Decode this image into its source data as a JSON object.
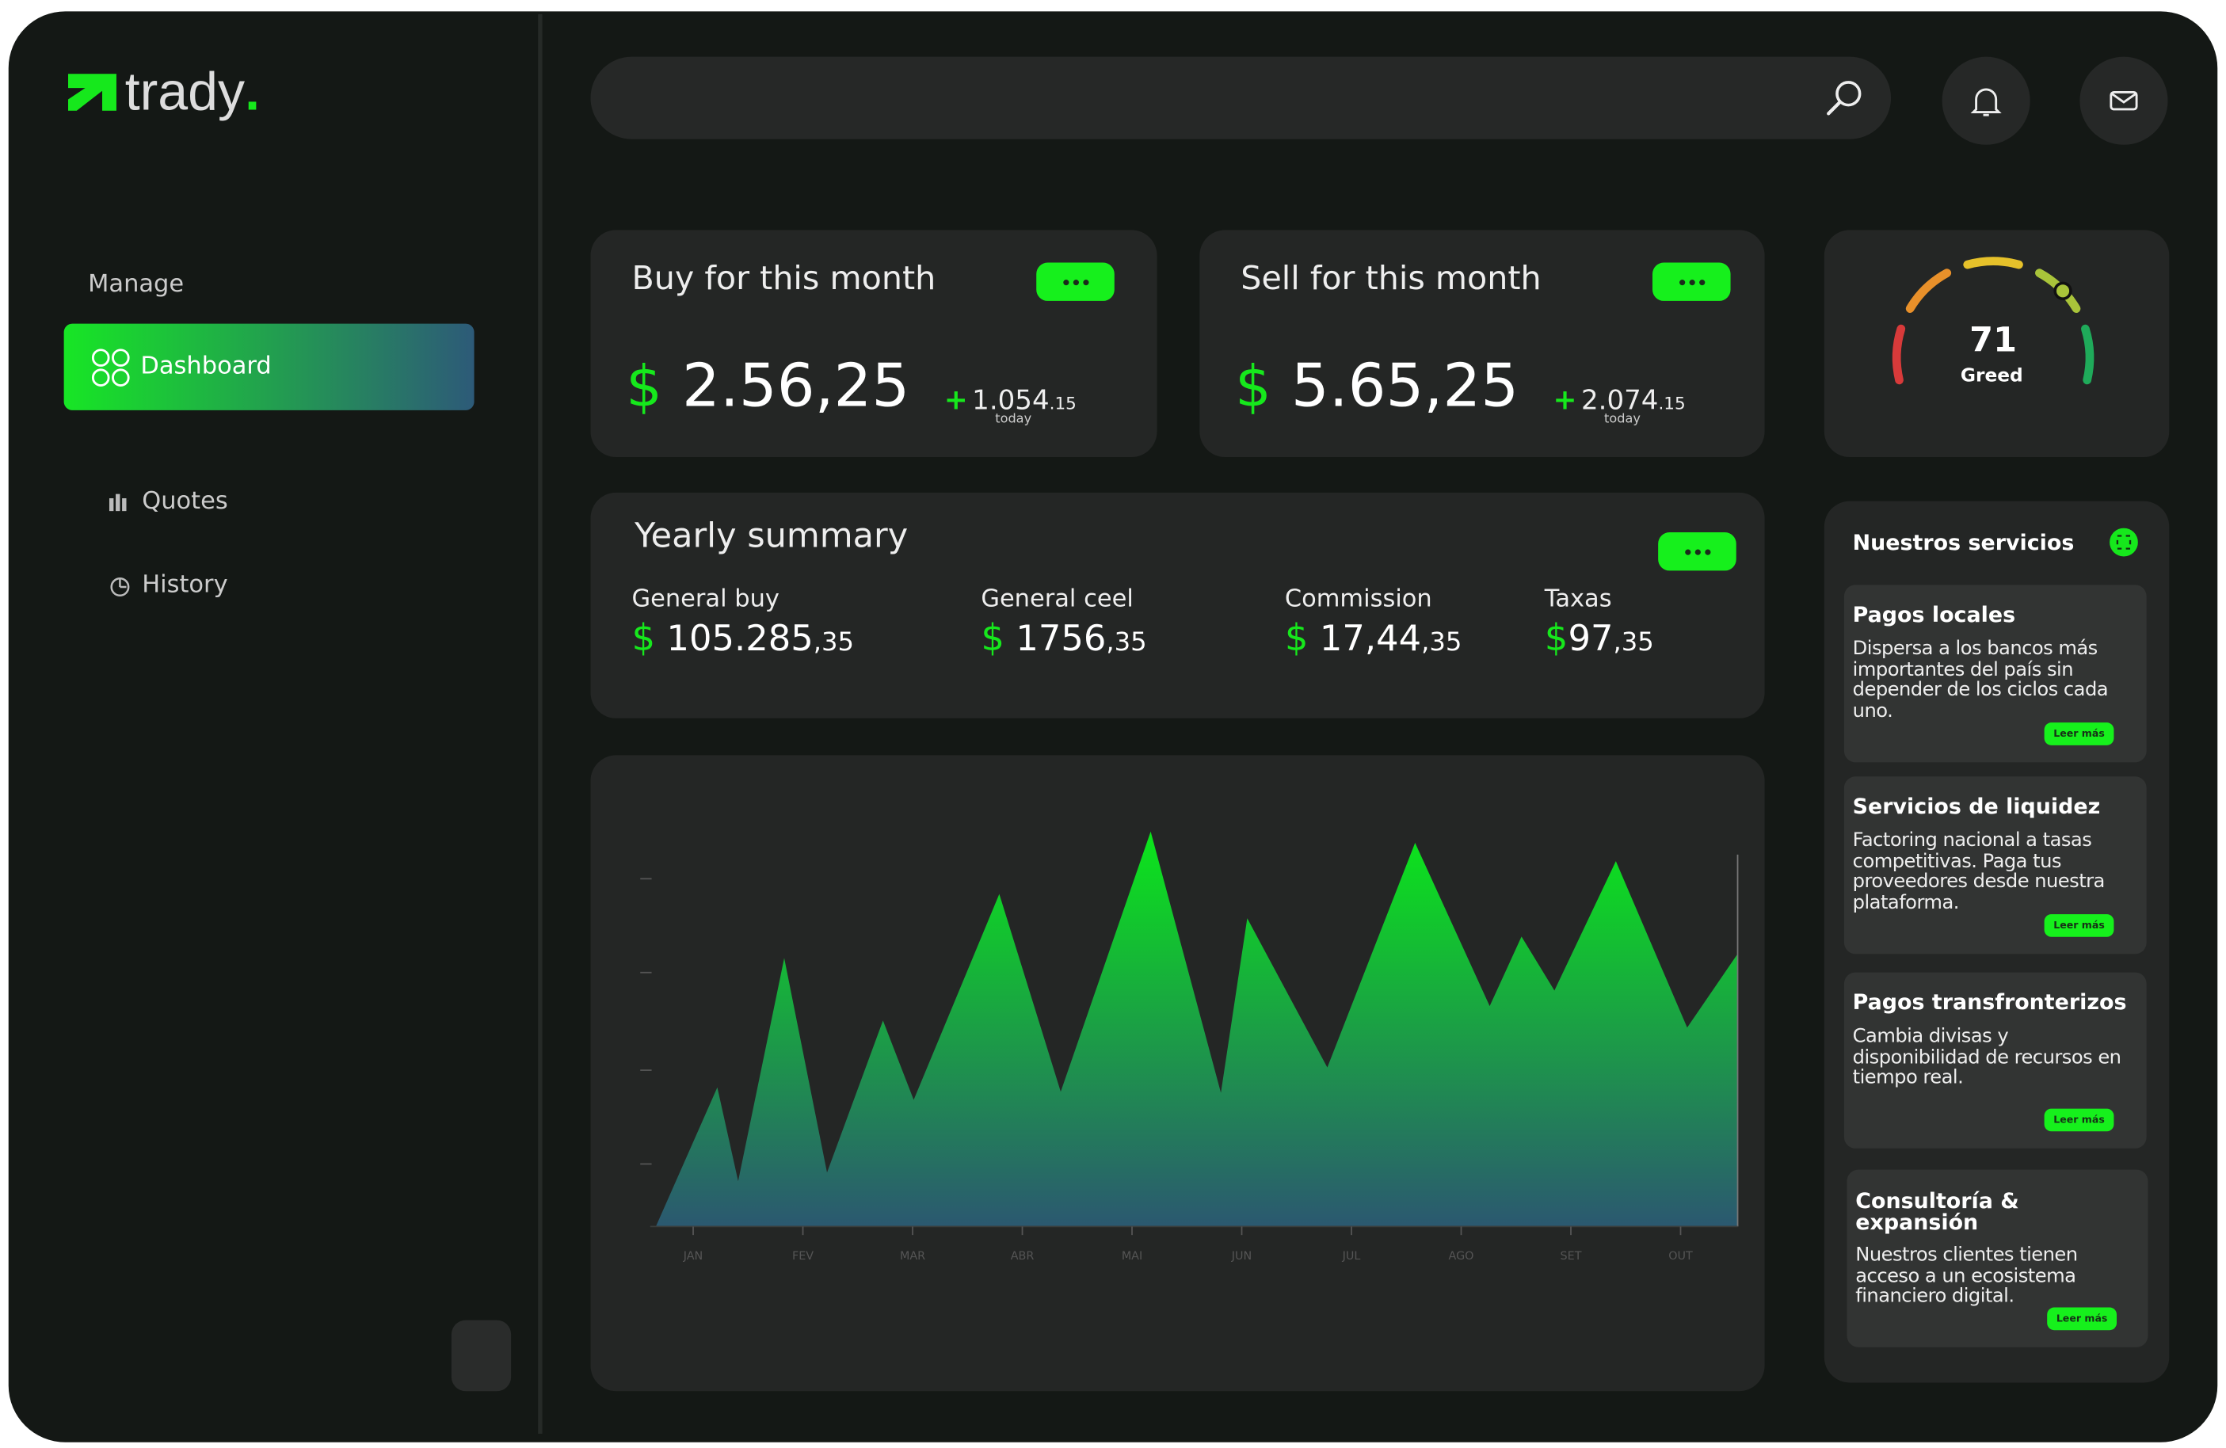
{
  "logo": {
    "name": "trady",
    "dot": "."
  },
  "sidebar": {
    "section": "Manage",
    "items": [
      "Dashboard",
      "Quotes",
      "History"
    ]
  },
  "buy_card": {
    "title": "Buy for this month",
    "currency": "$",
    "amount": "2.56,25",
    "change_sign": "+",
    "change": "1.054",
    "change_decimals": ".15",
    "change_note": "today"
  },
  "sell_card": {
    "title": "Sell for this month",
    "currency": "$",
    "amount": "5.65,25",
    "change_sign": "+",
    "change": "2.074",
    "change_decimals": ".15",
    "change_note": "today"
  },
  "gauge": {
    "value": 71,
    "label": "Greed",
    "lim": [
      0,
      100
    ]
  },
  "yearly": {
    "title": "Yearly summary",
    "items": [
      {
        "label": "General buy",
        "currency": "$",
        "amount": "105.285",
        "decimals": ",35"
      },
      {
        "label": "General ceel",
        "currency": "$",
        "amount": "1756",
        "decimals": ",35"
      },
      {
        "label": "Commission",
        "currency": "$",
        "amount": "17,44",
        "decimals": ",35"
      },
      {
        "label": "Taxas",
        "currency": "$",
        "amount": "97",
        "decimals": ",35"
      }
    ]
  },
  "services": {
    "title": "Nuestros servicios",
    "items": [
      {
        "title": "Pagos locales",
        "text": "Dispersa a los bancos más importantes del país sin depender de los ciclos cada uno.",
        "button": "Leer más"
      },
      {
        "title": "Servicios de liquidez",
        "text": "Factoring nacional a tasas competitivas. Paga tus proveedores desde nuestra plataforma.",
        "button": "Leer más"
      },
      {
        "title": "Pagos transfronterizos",
        "text": "Cambia divisas y disponibilidad de recursos en tiempo real.",
        "button": "Leer más"
      },
      {
        "title": "Consultoría & expansión",
        "text": "Nuestros clientes tienen acceso a un ecosistema financiero digital.",
        "button": "Leer más"
      }
    ]
  },
  "chart_data": {
    "type": "area",
    "x": [
      -0.34,
      0.22,
      0.41,
      0.83,
      1.22,
      1.73,
      2.01,
      2.79,
      3.35,
      4.17,
      4.81,
      5.05,
      5.78,
      6.58,
      7.26,
      7.55,
      7.85,
      8.41,
      9.06,
      9.52
    ],
    "values": [
      0,
      35.6,
      11.6,
      68.7,
      13.8,
      52.7,
      32.4,
      85.1,
      34.5,
      101.1,
      34.2,
      78.9,
      40.7,
      98.2,
      56.4,
      74.2,
      60.4,
      93.5,
      50.9,
      69.8
    ],
    "xlim": [
      -0.34,
      9.52
    ],
    "ylim": [
      0,
      105
    ],
    "xticks": [
      {
        "value": 0,
        "label": "JAN"
      },
      {
        "value": 1,
        "label": "FEV"
      },
      {
        "value": 2,
        "label": "MAR"
      },
      {
        "value": 3,
        "label": "ABR"
      },
      {
        "value": 4,
        "label": "MAI"
      },
      {
        "value": 5,
        "label": "JUN"
      },
      {
        "value": 6,
        "label": "JUL"
      },
      {
        "value": 7,
        "label": "AGO"
      },
      {
        "value": 8,
        "label": "SET"
      },
      {
        "value": 9,
        "label": "OUT"
      }
    ],
    "yticks": [
      16,
      40,
      65,
      89
    ],
    "gradient": [
      "#0be61a",
      "#2b5870"
    ]
  }
}
